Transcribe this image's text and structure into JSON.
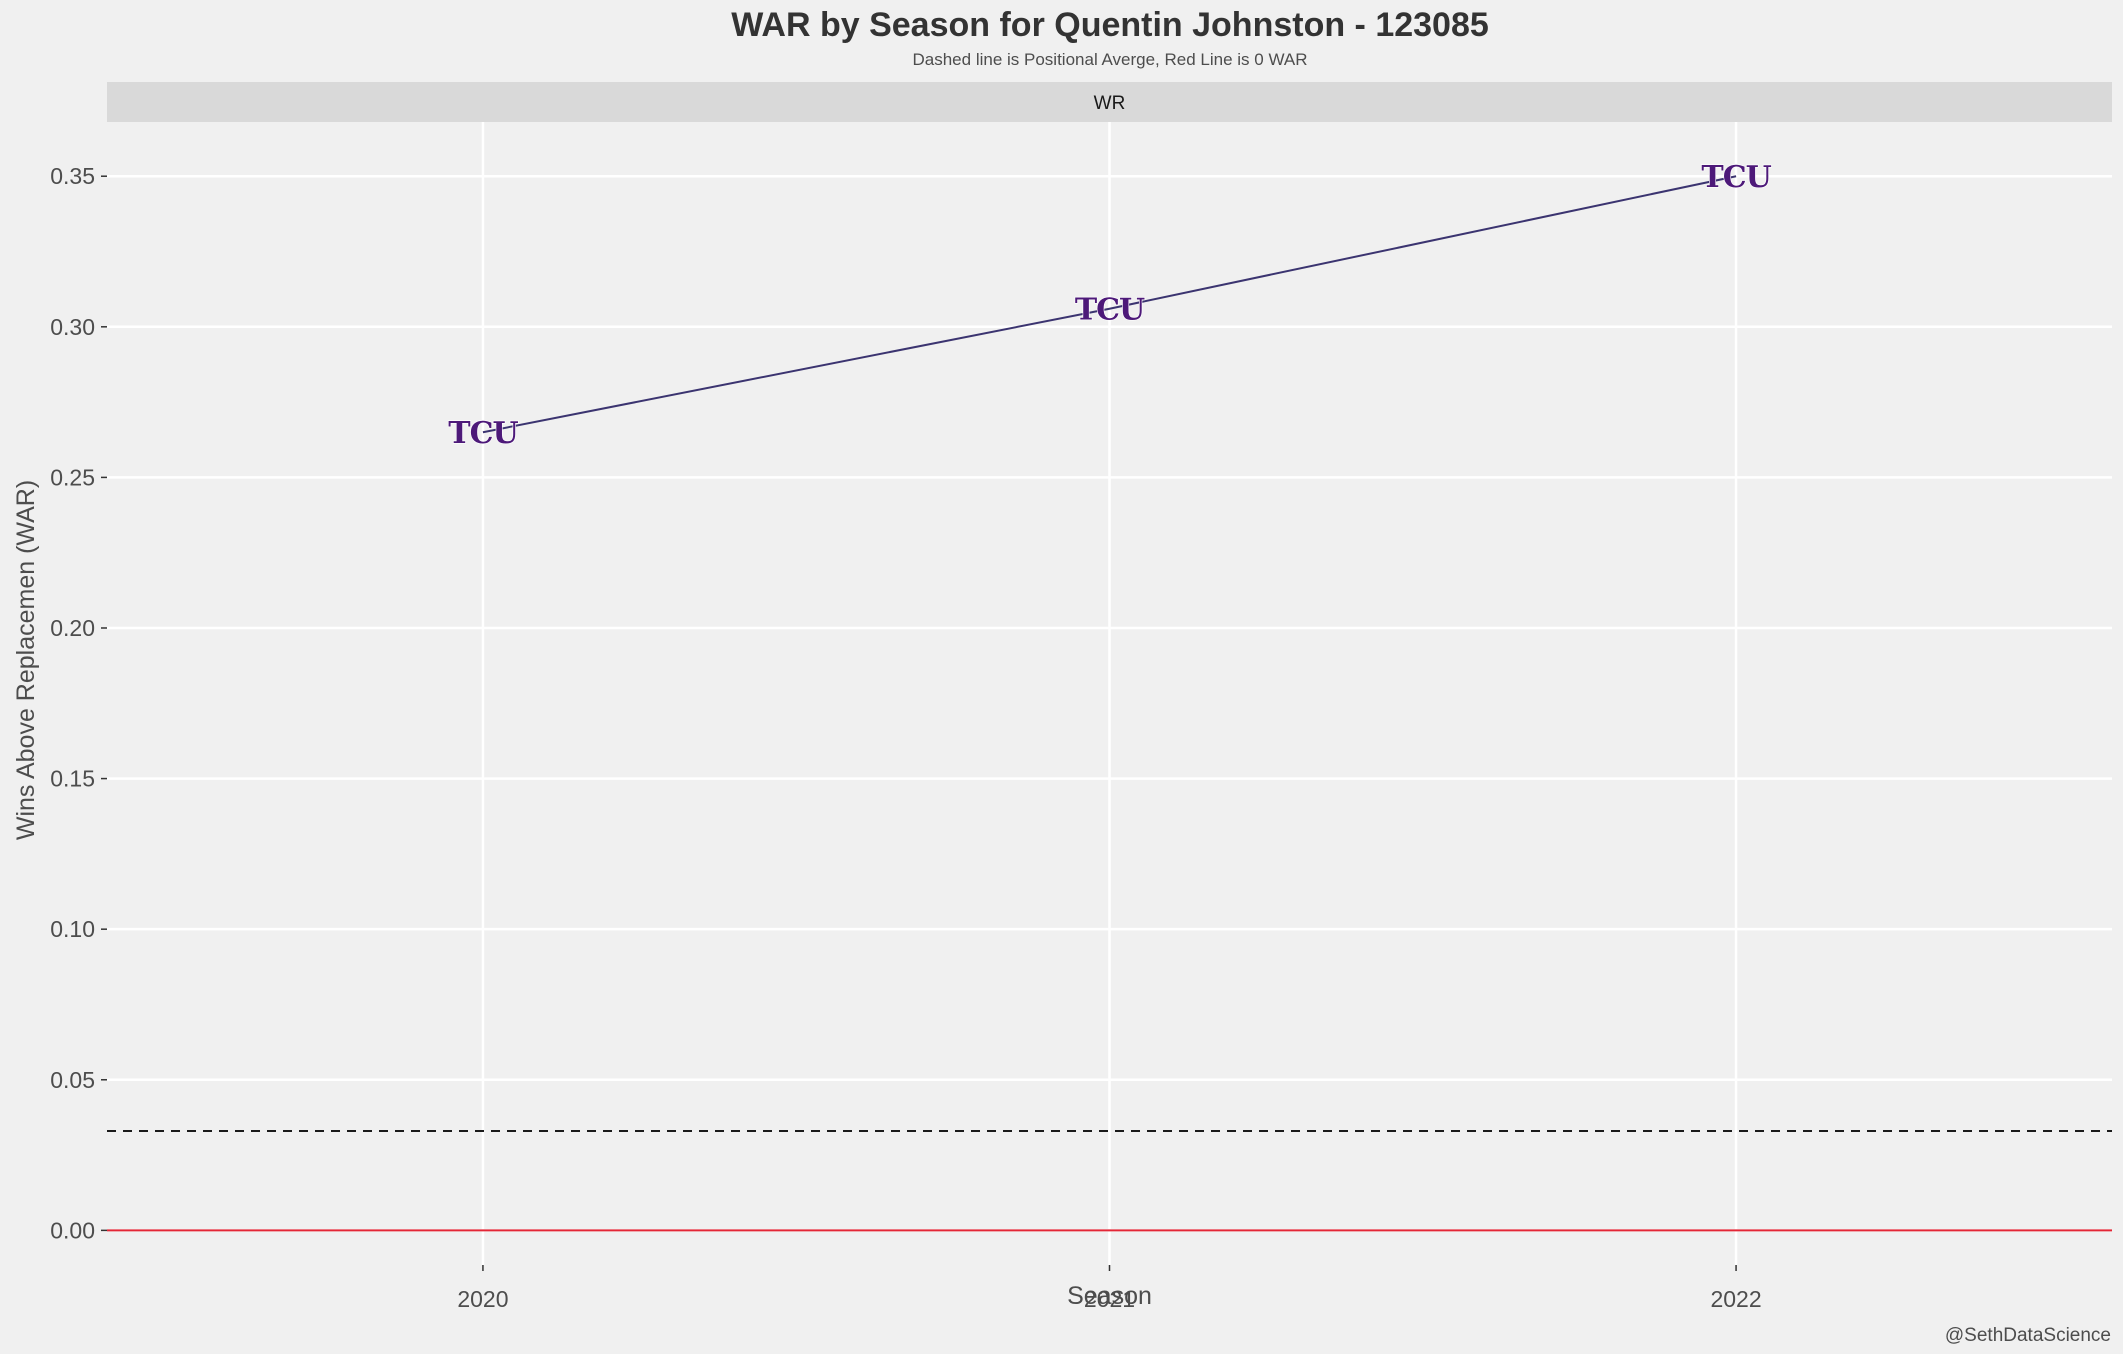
{
  "chart_data": {
    "type": "line",
    "title": "WAR by Season for Quentin Johnston - 123085",
    "subtitle": "Dashed line is Positional Averge, Red Line is 0 WAR",
    "facet_label": "WR",
    "xlabel": "Season",
    "ylabel": "Wins Above Replacemen (WAR)",
    "caption": "@SethDataScience",
    "categories": [
      "2020",
      "2021",
      "2022"
    ],
    "series": [
      {
        "values": [
          0.265,
          0.306,
          0.35
        ],
        "marker": "TCU"
      }
    ],
    "reference_lines": {
      "positional_average": 0.033,
      "zero": 0
    },
    "ylim": [
      -0.0115,
      0.368
    ],
    "yticks": [
      "0.00",
      "0.05",
      "0.10",
      "0.15",
      "0.20",
      "0.25",
      "0.30",
      "0.35"
    ],
    "grid": true,
    "colors": {
      "background": "#f0f0f0",
      "strip": "#d9d9d9",
      "line": "#3b3470",
      "marker": "#4d1979",
      "zero_line": "#e32636",
      "avg_line": "#1a1a1a",
      "grid": "#ffffff"
    }
  }
}
